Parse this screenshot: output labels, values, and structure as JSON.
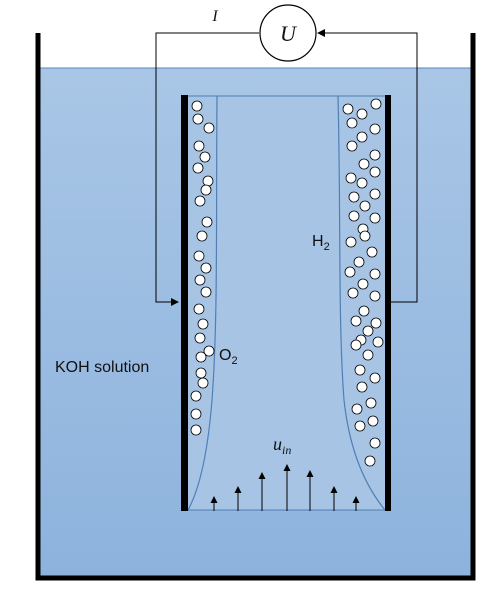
{
  "meter": {
    "symbol": "U"
  },
  "current": {
    "symbol": "I"
  },
  "electrolyte": {
    "label": "KOH solution"
  },
  "gases": {
    "anode": {
      "base": "O",
      "sub": "2"
    },
    "cathode": {
      "base": "H",
      "sub": "2"
    }
  },
  "inflow": {
    "base": "u",
    "sub": "in"
  },
  "colors": {
    "solution_top": "#a9c6e6",
    "solution_bottom": "#8db3dd",
    "electrode": "#000000",
    "bubble_fill": "#ffffff",
    "wire": "#000000"
  }
}
